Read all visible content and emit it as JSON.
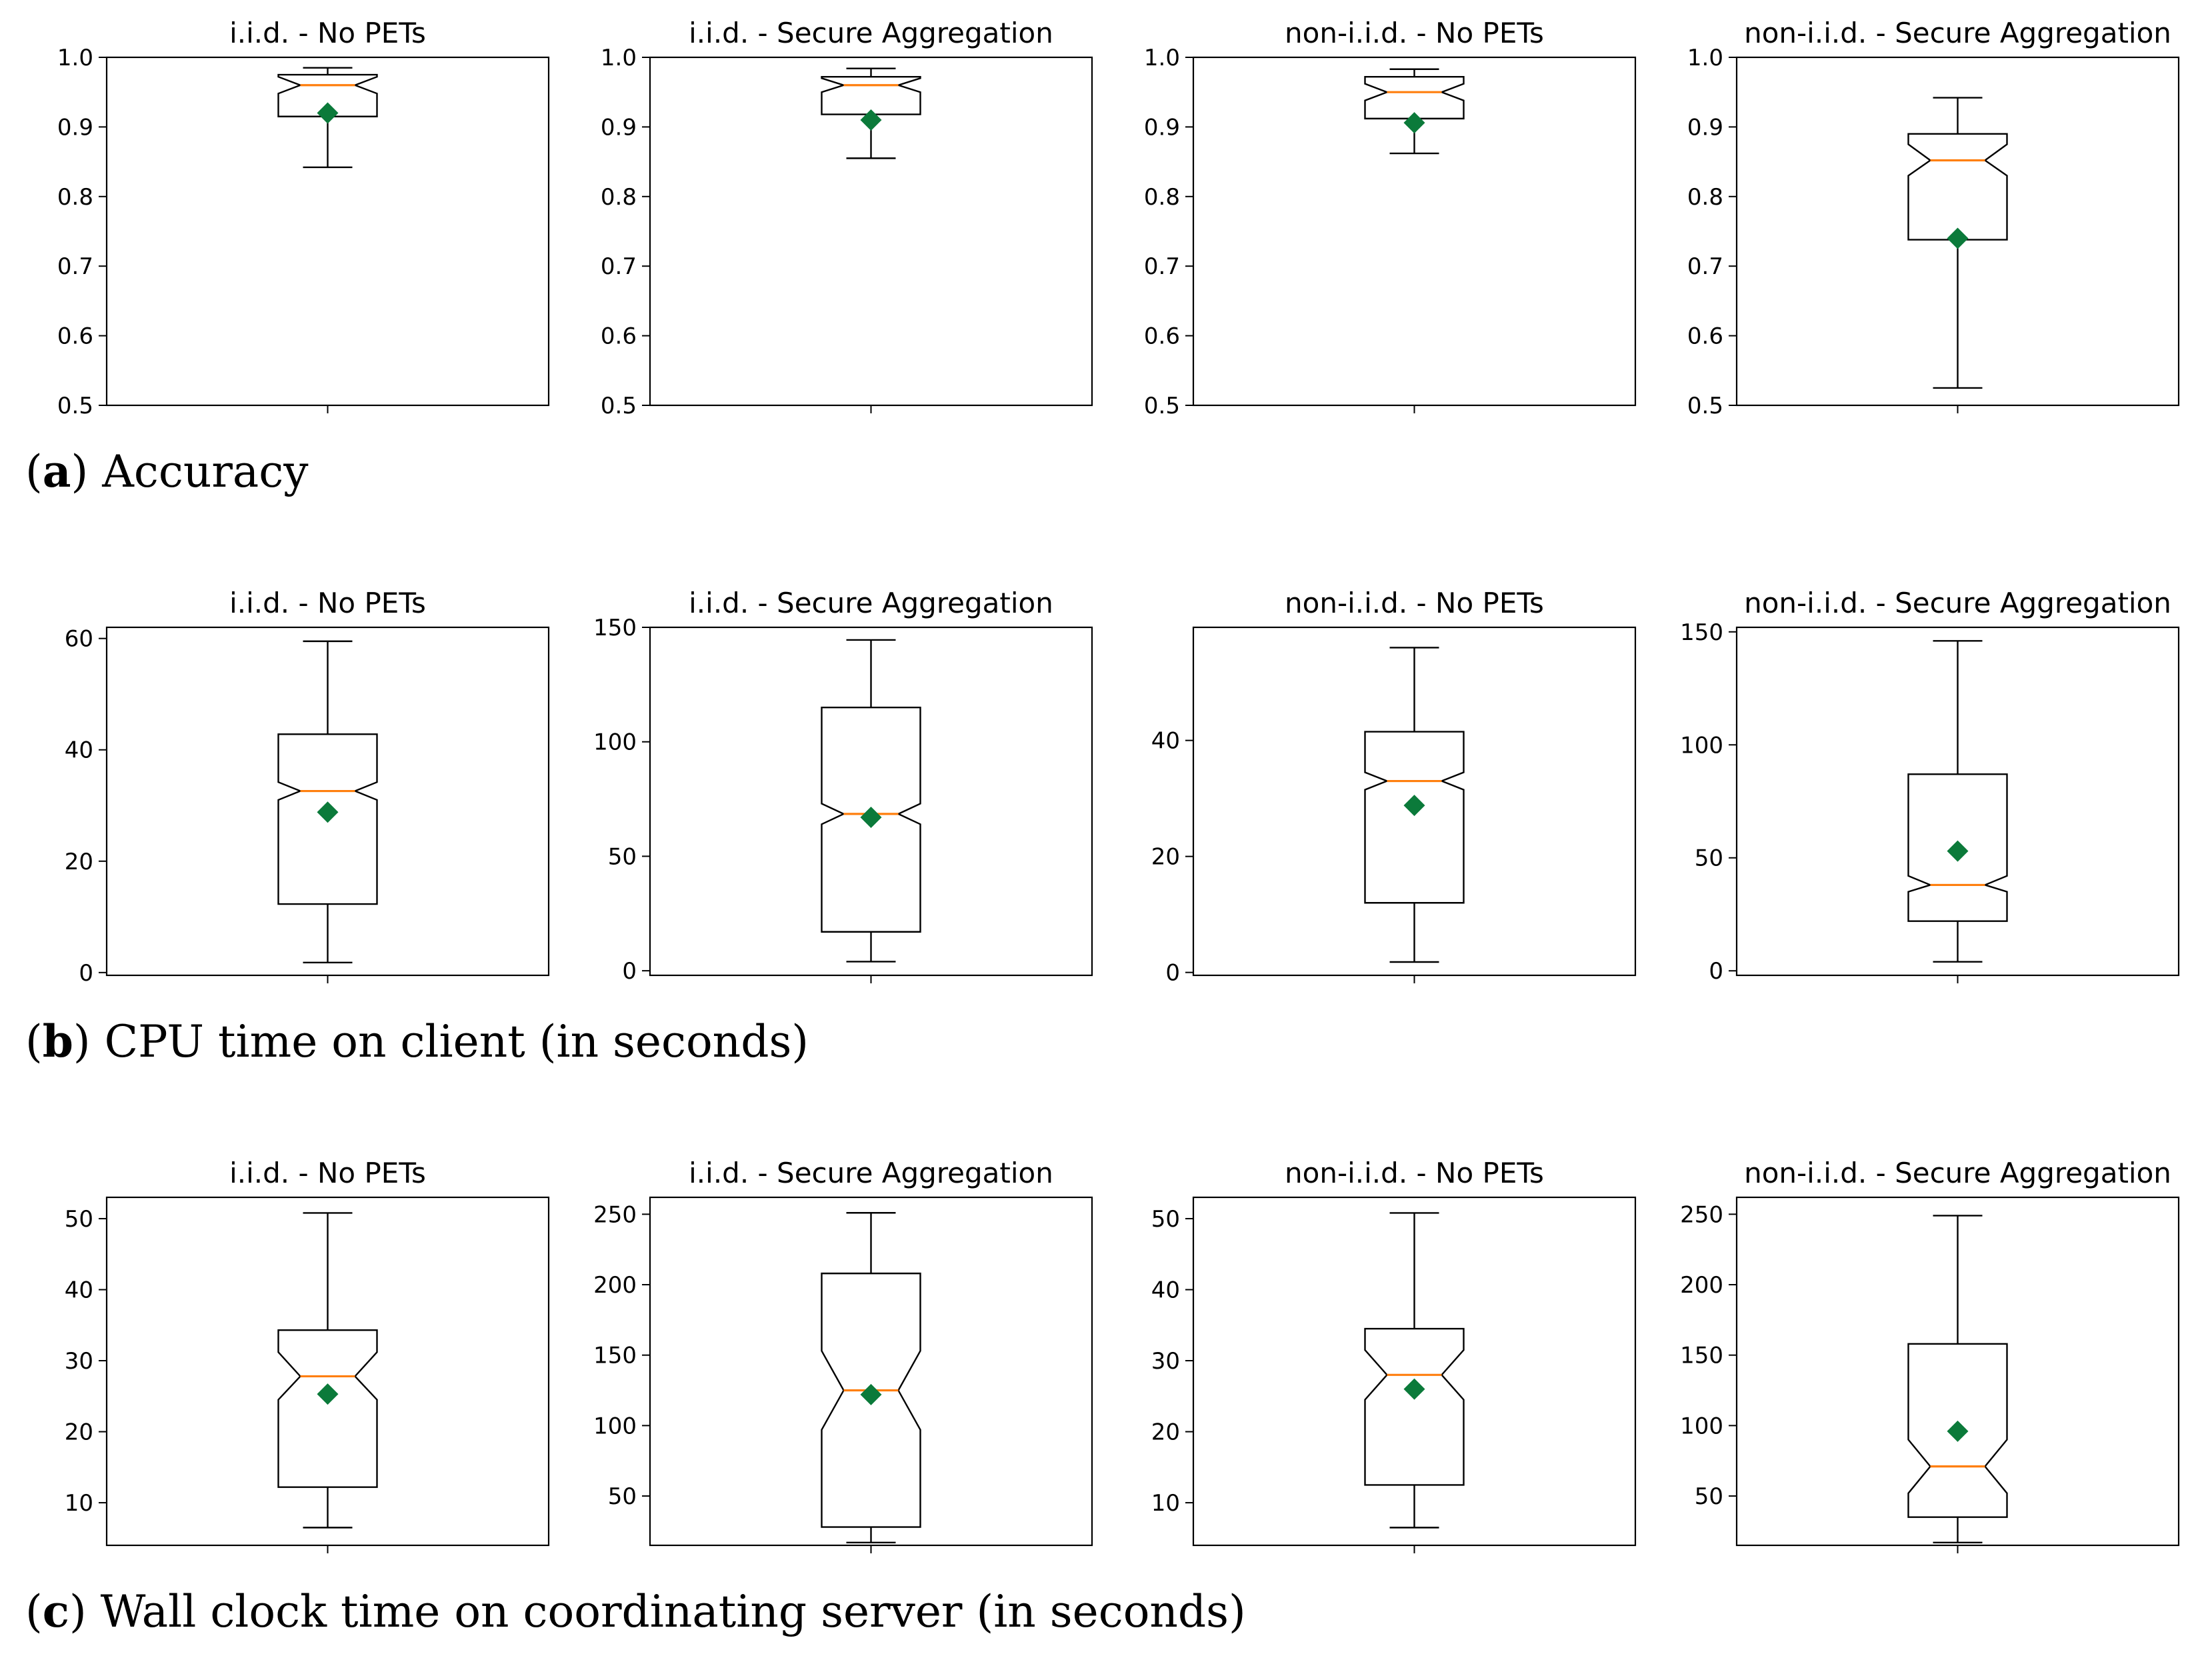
{
  "captions": [
    {
      "letter": "a",
      "text": "Accuracy"
    },
    {
      "letter": "b",
      "text": "CPU time on client (in seconds)"
    },
    {
      "letter": "c",
      "text": "Wall clock time on coordinating server (in seconds)"
    }
  ],
  "colors": {
    "box": "#000000",
    "median": "#ff7f0e",
    "mean": "#0b7a3a"
  },
  "chart_data": [
    {
      "type": "box",
      "row": "a",
      "title": "i.i.d. - No PETs",
      "ylim": [
        0.5,
        1.0
      ],
      "yticks": [
        0.5,
        0.6,
        0.7,
        0.8,
        0.9,
        1.0
      ],
      "whislo": 0.842,
      "q1": 0.915,
      "med": 0.96,
      "q3": 0.975,
      "whishi": 0.985,
      "notchlo": 0.948,
      "notchhi": 0.972,
      "mean": 0.92
    },
    {
      "type": "box",
      "row": "a",
      "title": "i.i.d. - Secure Aggregation",
      "ylim": [
        0.5,
        1.0
      ],
      "yticks": [
        0.5,
        0.6,
        0.7,
        0.8,
        0.9,
        1.0
      ],
      "whislo": 0.855,
      "q1": 0.918,
      "med": 0.96,
      "q3": 0.972,
      "whishi": 0.984,
      "notchlo": 0.95,
      "notchhi": 0.97,
      "mean": 0.91
    },
    {
      "type": "box",
      "row": "a",
      "title": "non-i.i.d. - No PETs",
      "ylim": [
        0.5,
        1.0
      ],
      "yticks": [
        0.5,
        0.6,
        0.7,
        0.8,
        0.9,
        1.0
      ],
      "whislo": 0.862,
      "q1": 0.912,
      "med": 0.95,
      "q3": 0.972,
      "whishi": 0.983,
      "notchlo": 0.938,
      "notchhi": 0.962,
      "mean": 0.906
    },
    {
      "type": "box",
      "row": "a",
      "title": "non-i.i.d. - Secure Aggregation",
      "ylim": [
        0.5,
        1.0
      ],
      "yticks": [
        0.5,
        0.6,
        0.7,
        0.8,
        0.9,
        1.0
      ],
      "whislo": 0.525,
      "q1": 0.738,
      "med": 0.852,
      "q3": 0.89,
      "whishi": 0.942,
      "notchlo": 0.83,
      "notchhi": 0.875,
      "mean": 0.74
    },
    {
      "type": "box",
      "row": "b",
      "title": "i.i.d. - No PETs",
      "ylim": [
        -0.5,
        62
      ],
      "yticks": [
        0,
        20,
        40,
        60
      ],
      "whislo": 1.8,
      "q1": 12.3,
      "med": 32.6,
      "q3": 42.8,
      "whishi": 59.5,
      "notchlo": 31.0,
      "notchhi": 34.2,
      "mean": 28.8
    },
    {
      "type": "box",
      "row": "b",
      "title": "i.i.d. - Secure Aggregation",
      "ylim": [
        -2,
        150
      ],
      "yticks": [
        0,
        50,
        100,
        150
      ],
      "whislo": 4.0,
      "q1": 17.0,
      "med": 68.5,
      "q3": 115.0,
      "whishi": 144.5,
      "notchlo": 64.0,
      "notchhi": 73.0,
      "mean": 67.0
    },
    {
      "type": "box",
      "row": "b",
      "title": "non-i.i.d. - No PETs",
      "ylim": [
        -0.5,
        59.5
      ],
      "yticks": [
        0,
        20,
        40
      ],
      "whislo": 1.8,
      "q1": 12.0,
      "med": 33.0,
      "q3": 41.5,
      "whishi": 56.0,
      "notchlo": 31.5,
      "notchhi": 34.5,
      "mean": 28.8
    },
    {
      "type": "box",
      "row": "b",
      "title": "non-i.i.d. - Secure Aggregation",
      "ylim": [
        -2,
        152
      ],
      "yticks": [
        0,
        50,
        100,
        150
      ],
      "whislo": 4.0,
      "q1": 22.0,
      "med": 38.0,
      "q3": 87.0,
      "whishi": 146.0,
      "notchlo": 35.0,
      "notchhi": 42.0,
      "mean": 53.0
    },
    {
      "type": "box",
      "row": "c",
      "title": "i.i.d. - No PETs",
      "ylim": [
        4,
        53
      ],
      "yticks": [
        10,
        20,
        30,
        40,
        50
      ],
      "whislo": 6.5,
      "q1": 12.2,
      "med": 27.8,
      "q3": 34.3,
      "whishi": 50.8,
      "notchlo": 24.5,
      "notchhi": 31.2,
      "mean": 25.3
    },
    {
      "type": "box",
      "row": "c",
      "title": "i.i.d. - Secure Aggregation",
      "ylim": [
        15,
        262
      ],
      "yticks": [
        50,
        100,
        150,
        200,
        250
      ],
      "whislo": 17.0,
      "q1": 28.0,
      "med": 125.0,
      "q3": 208.0,
      "whishi": 251.0,
      "notchlo": 97.0,
      "notchhi": 153.0,
      "mean": 122.0
    },
    {
      "type": "box",
      "row": "c",
      "title": "non-i.i.d. - No PETs",
      "ylim": [
        4,
        53
      ],
      "yticks": [
        10,
        20,
        30,
        40,
        50
      ],
      "whislo": 6.5,
      "q1": 12.5,
      "med": 28.0,
      "q3": 34.5,
      "whishi": 50.8,
      "notchlo": 24.5,
      "notchhi": 31.5,
      "mean": 26.0
    },
    {
      "type": "box",
      "row": "c",
      "title": "non-i.i.d. - Secure Aggregation",
      "ylim": [
        15,
        262
      ],
      "yticks": [
        50,
        100,
        150,
        200,
        250
      ],
      "whislo": 17.0,
      "q1": 35.0,
      "med": 71.0,
      "q3": 158.0,
      "whishi": 249.0,
      "notchlo": 52.0,
      "notchhi": 90.0,
      "mean": 96.0
    }
  ]
}
